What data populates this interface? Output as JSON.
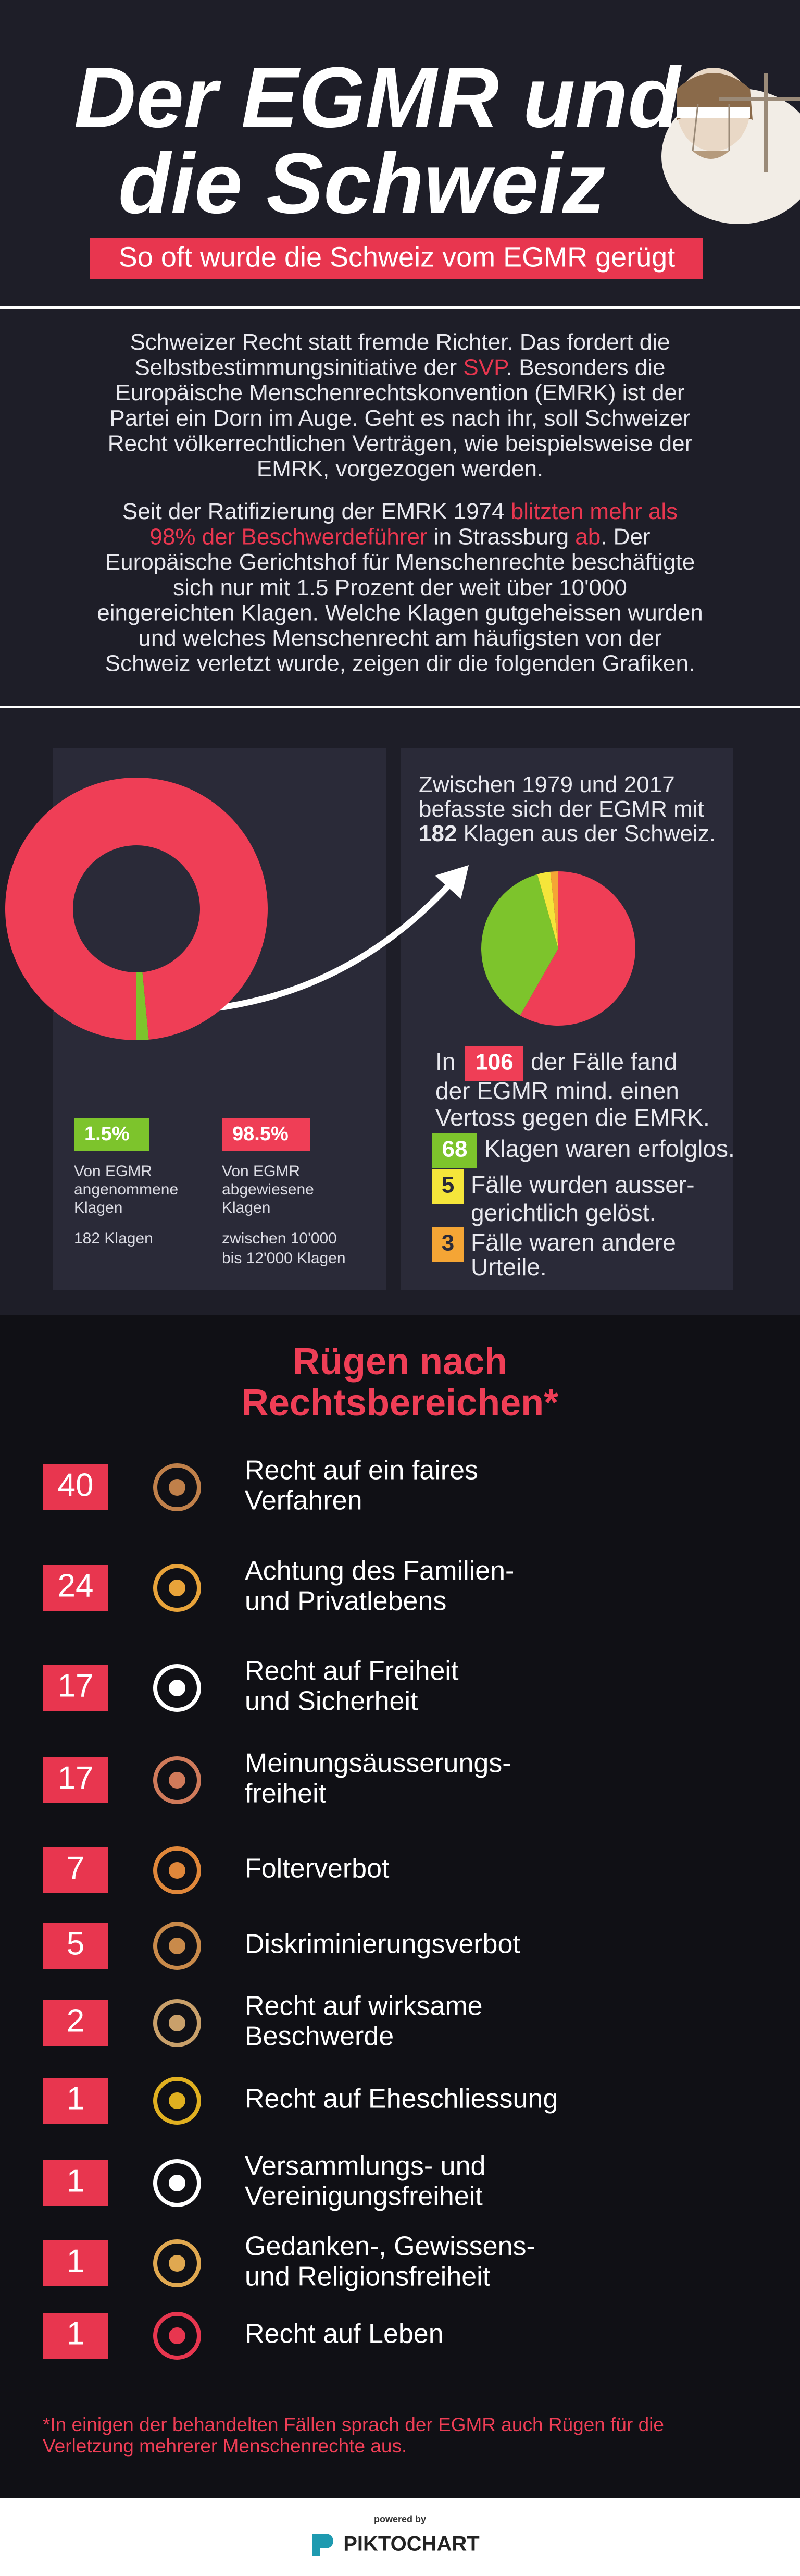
{
  "header": {
    "title": [
      "Der EGMR und",
      "die Schweiz"
    ],
    "subtitle": "So oft wurde die Schweiz vom EGMR gerügt"
  },
  "intro": [
    [
      [
        "Schweizer Recht statt fremde Richter. Das fordert die"
      ],
      [
        "Selbstbestimmungsinitiative der ",
        {
          "text": "SVP",
          "color": "#e8364f"
        },
        ". Besonders die"
      ],
      [
        "Europäische Menschenrechtskonvention (EMRK) ist der"
      ],
      [
        "Partei ein Dorn im Auge. Geht es nach ihr, soll Schweizer"
      ],
      [
        "Recht völkerrechtlichen Verträgen, wie beispielsweise der"
      ],
      [
        "EMRK, vorgezogen werden."
      ]
    ],
    [
      [
        "Seit der Ratifizierung der EMRK 1974 ",
        {
          "text": "blitzten mehr als",
          "color": "#e8364f"
        }
      ],
      [
        {
          "text": "98% der Beschwerdeführer",
          "color": "#e8364f"
        },
        " in Strassburg ",
        {
          "text": "ab",
          "color": "#e8364f"
        },
        ". Der"
      ],
      [
        "Europäische Gerichtshof für Menschenrechte beschäftigte"
      ],
      [
        "sich nur mit 1.5 Prozent der weit über 10'000"
      ],
      [
        "eingereichten Klagen. Welche Klagen gutgeheissen wurden"
      ],
      [
        "und welches Menschenrecht am häufigsten von der"
      ],
      [
        "Schweiz verletzt wurde, zeigen dir die folgenden Grafiken."
      ]
    ]
  ],
  "chart_data": [
    {
      "type": "donut",
      "categories": [
        [
          "Von EGMR",
          "angenommene",
          "Klagen"
        ],
        [
          "Von EGMR",
          "abgewiesene",
          "Klagen"
        ]
      ],
      "values": [
        1.5,
        98.5
      ],
      "value_labels": [
        "1.5%",
        "98.5%"
      ],
      "colors": [
        "#7dc42c",
        "#ef3e56"
      ],
      "notes": [
        [
          "182 Klagen"
        ],
        [
          "zwischen 10'000",
          "bis 12'000 Klagen"
        ]
      ]
    },
    {
      "type": "pie",
      "intro": [
        [
          "Zwischen 1979 und 2017"
        ],
        [
          "befasste sich der EGMR mit"
        ],
        [
          {
            "text": "182",
            "bold": true
          },
          " Klagen aus der Schweiz."
        ]
      ],
      "lead": "In",
      "categories": [
        [
          "der Fälle fand",
          "der EGMR mind. einen",
          "Vertoss gegen die EMRK."
        ],
        [
          "Klagen waren erfolglos."
        ],
        [
          "Fälle wurden ausser-",
          "gerichtlich gelöst."
        ],
        [
          "Fälle waren andere",
          "Urteile."
        ]
      ],
      "values": [
        106,
        68,
        5,
        3
      ],
      "colors": [
        "#ef3e56",
        "#7dc42c",
        "#f5e53a",
        "#f4a535"
      ]
    }
  ],
  "rankings": {
    "title": [
      "Rügen nach",
      "Rechtsbereichen*"
    ],
    "items": [
      {
        "count": 40,
        "label": [
          "Recht auf ein faires",
          "Verfahren"
        ]
      },
      {
        "count": 24,
        "label": [
          "Achtung des Familien-",
          "und Privatlebens"
        ]
      },
      {
        "count": 17,
        "label": [
          "Recht auf Freiheit",
          "und Sicherheit"
        ]
      },
      {
        "count": 17,
        "label": [
          "Meinungsäusserungs-",
          "freiheit"
        ]
      },
      {
        "count": 7,
        "label": [
          "Folterverbot"
        ]
      },
      {
        "count": 5,
        "label": [
          "Diskriminierungsverbot"
        ]
      },
      {
        "count": 2,
        "label": [
          "Recht auf wirksame",
          "Beschwerde"
        ]
      },
      {
        "count": 1,
        "label": [
          "Recht auf Eheschliessung"
        ]
      },
      {
        "count": 1,
        "label": [
          "Versammlungs- und",
          "Vereinigungsfreiheit"
        ]
      },
      {
        "count": 1,
        "label": [
          "Gedanken-, Gewissens-",
          "und Religionsfreiheit"
        ]
      },
      {
        "count": 1,
        "label": [
          "Recht auf Leben"
        ]
      }
    ],
    "footnote": [
      "*In einigen der behandelten Fällen sprach der EGMR auch Rügen für die",
      "Verletzung mehrerer Menschenrechte aus."
    ]
  },
  "footer": {
    "powered_by": "powered by",
    "brand": "PIKTOCHART"
  }
}
